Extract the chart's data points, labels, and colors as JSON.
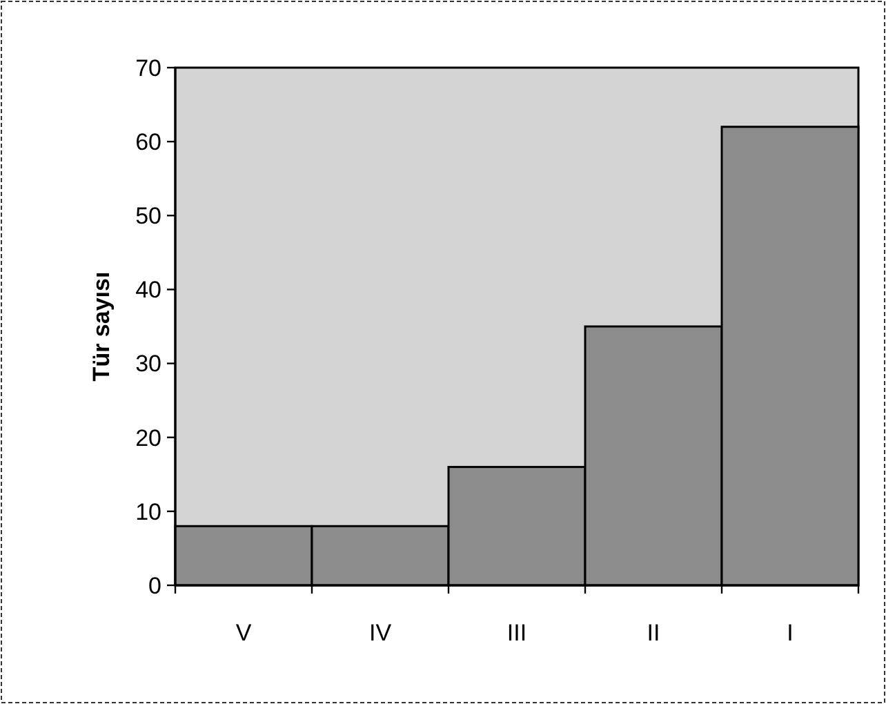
{
  "chart_data": {
    "type": "bar",
    "ylabel": "Tür sayısı",
    "categories": [
      "V",
      "IV",
      "III",
      "II",
      "I"
    ],
    "values": [
      8,
      8,
      16,
      35,
      62
    ],
    "color": "#8c8c8c",
    "ylim": [
      0,
      70
    ],
    "yticks": [
      0,
      10,
      20,
      30,
      40,
      50,
      60,
      70
    ],
    "grid": false
  }
}
